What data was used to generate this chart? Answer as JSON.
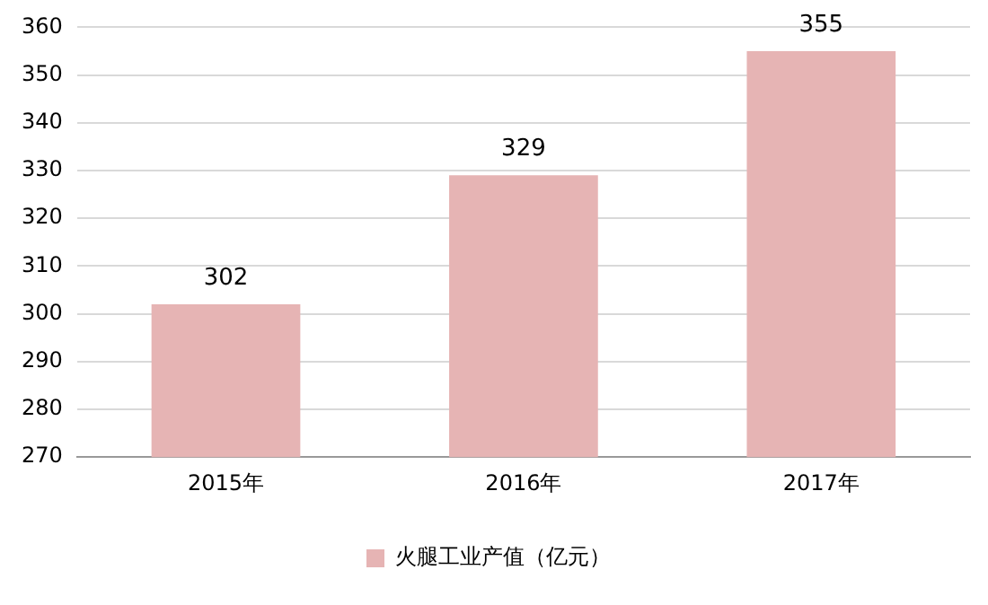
{
  "chart_data": {
    "type": "bar",
    "categories": [
      "2015年",
      "2016年",
      "2017年"
    ],
    "series": [
      {
        "name": "火腿工业产值（亿元）",
        "color": "#e6b4b4",
        "values": [
          302,
          329,
          355
        ]
      }
    ],
    "ylim": [
      270,
      360
    ],
    "yticks": [
      270,
      280,
      290,
      300,
      310,
      320,
      330,
      340,
      350,
      360
    ],
    "grid": "y",
    "legend": "bottom",
    "data_labels": true
  }
}
